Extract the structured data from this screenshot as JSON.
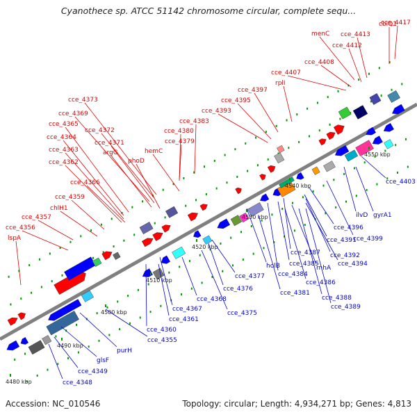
{
  "title": "Cyanothece sp. ATCC 51142 chromosome circular, complete sequ...",
  "footer": {
    "accession": "Accession: NC_010546",
    "summary": "Topology: circular; Length: 4,934,271 bp; Genes: 4,813"
  },
  "colors": {
    "backbone": "#808080",
    "label_red": "#e00000",
    "label_blue": "#0000cc",
    "forward_gene": "#ff0000",
    "reverse_gene": "#0000ff",
    "tick_dot": "#009900"
  },
  "scale_labels": [
    "4480 kbp",
    "4490 kbp",
    "4500 kbp",
    "4510 kbp",
    "4520 kbp",
    "4530 kbp",
    "4540 kbp",
    "4550 kbp"
  ],
  "forward_labels": [
    "cce_4417",
    "menC",
    "cbiQ1",
    "cce_4413",
    "cce_4412",
    "cce_4408",
    "cce_4407",
    "rplI",
    "cce_4397",
    "cce_4395",
    "cce_4393",
    "cce_4383",
    "cce_4380",
    "cce_4379",
    "hemC",
    "cce_4373",
    "cce_4369",
    "cce_4372",
    "cce_4365",
    "cce_4371",
    "cce_4364",
    "argG",
    "cce_4363",
    "phoD",
    "cce_4362",
    "cce_4366",
    "cce_4359",
    "chlH1",
    "cce_4357",
    "cce_4356",
    "lspA"
  ],
  "reverse_labels": [
    "cce_4403",
    "gyrA1",
    "ilvD",
    "cce_4399",
    "cce_4396",
    "cce_4391",
    "cce_4392",
    "cce_4387",
    "cce_4394",
    "cce_4385",
    "rnhA",
    "cce_4384",
    "cce_4386",
    "holB",
    "cce_4388",
    "cce_4381",
    "cce_4389",
    "cce_4377",
    "cce_4376",
    "cce_4375",
    "cce_4368",
    "cce_4367",
    "cce_4361",
    "cce_4360",
    "cce_4355",
    "purH",
    "glsF",
    "cce_4349",
    "cce_4348"
  ]
}
